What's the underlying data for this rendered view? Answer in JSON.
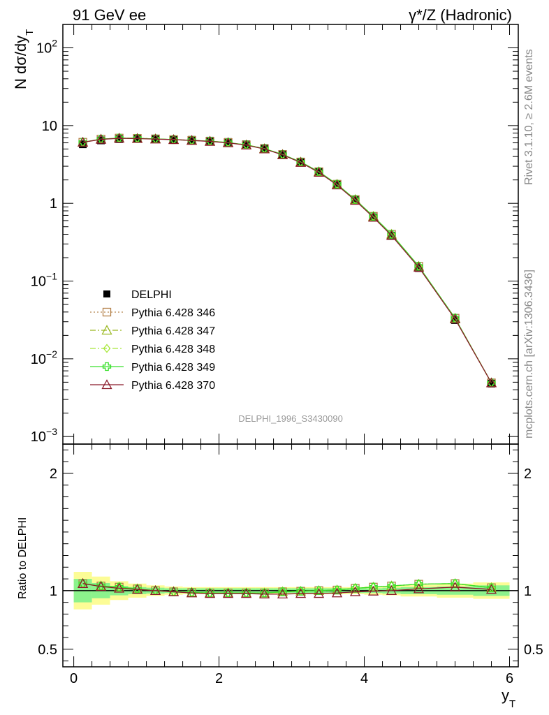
{
  "header": {
    "left": "91 GeV ee",
    "right": "γ*/Z (Hadronic)"
  },
  "side_labels": {
    "rivet": "Rivet 3.1.10, ≥ 2.6M events",
    "site": "mcplots.cern.ch [arXiv:1306.3436]"
  },
  "watermark": "DELPHI_1996_S3430090",
  "chart_data": [
    {
      "type": "line",
      "ylabel": "N dσ/dy_T",
      "yscale": "log",
      "ylim": [
        0.0008,
        200
      ],
      "xlim": [
        -0.15,
        6.12
      ],
      "ytick_labels": [
        "10^{-3}",
        "10^{-2}",
        "10^{-1}",
        "1",
        "10",
        "10^{2}"
      ],
      "x": [
        0.125,
        0.375,
        0.625,
        0.875,
        1.125,
        1.375,
        1.625,
        1.875,
        2.125,
        2.375,
        2.625,
        2.875,
        3.125,
        3.375,
        3.625,
        3.875,
        4.125,
        4.375,
        4.75,
        5.25,
        5.75
      ],
      "series": [
        {
          "name": "DELPHI",
          "color": "#000000",
          "marker": "square",
          "values": [
            5.75,
            6.45,
            6.7,
            6.75,
            6.75,
            6.65,
            6.55,
            6.4,
            6.15,
            5.75,
            5.15,
            4.3,
            3.4,
            2.55,
            1.75,
            1.1,
            0.66,
            0.385,
            0.147,
            0.0315,
            0.0048
          ]
        },
        {
          "name": "Pythia 6.428 346",
          "color": "#b5824a",
          "marker": "open-square",
          "dash": "2,3",
          "values": [
            6.1,
            6.7,
            6.9,
            6.85,
            6.75,
            6.6,
            6.45,
            6.3,
            6.05,
            5.65,
            5.05,
            4.25,
            3.4,
            2.55,
            1.76,
            1.12,
            0.68,
            0.4,
            0.155,
            0.0333,
            0.0049
          ]
        },
        {
          "name": "Pythia 6.428 347",
          "color": "#9ab822",
          "marker": "open-triangle",
          "dash": "8,3,2,3",
          "values": [
            6.1,
            6.7,
            6.9,
            6.85,
            6.75,
            6.6,
            6.45,
            6.3,
            6.05,
            5.65,
            5.05,
            4.25,
            3.4,
            2.55,
            1.76,
            1.12,
            0.68,
            0.4,
            0.155,
            0.0333,
            0.0049
          ]
        },
        {
          "name": "Pythia 6.428 348",
          "color": "#a8e83a",
          "marker": "open-diamond",
          "dash": "8,3,2,3",
          "values": [
            6.1,
            6.7,
            6.9,
            6.85,
            6.75,
            6.6,
            6.45,
            6.3,
            6.05,
            5.65,
            5.05,
            4.25,
            3.4,
            2.55,
            1.76,
            1.12,
            0.68,
            0.4,
            0.155,
            0.0333,
            0.0049
          ]
        },
        {
          "name": "Pythia 6.428 349",
          "color": "#39e02c",
          "marker": "open-cross",
          "dash": "",
          "values": [
            6.1,
            6.7,
            6.9,
            6.85,
            6.75,
            6.6,
            6.45,
            6.3,
            6.05,
            5.65,
            5.05,
            4.25,
            3.4,
            2.55,
            1.76,
            1.12,
            0.68,
            0.4,
            0.155,
            0.0333,
            0.0049
          ]
        },
        {
          "name": "Pythia 6.428 370",
          "color": "#8b1a2a",
          "marker": "open-triangle",
          "dash": "",
          "values": [
            6.1,
            6.65,
            6.85,
            6.8,
            6.7,
            6.6,
            6.45,
            6.25,
            6.0,
            5.6,
            5.0,
            4.2,
            3.35,
            2.5,
            1.72,
            1.09,
            0.66,
            0.385,
            0.15,
            0.0325,
            0.0049
          ]
        }
      ]
    },
    {
      "type": "line",
      "ylabel": "Ratio to DELPHI",
      "xlabel": "y_T",
      "ylim": [
        0.35,
        2.25
      ],
      "xlim": [
        -0.15,
        6.12
      ],
      "yticks": [
        0.5,
        1,
        2
      ],
      "ytick_labels": [
        "0.5",
        "1",
        "2"
      ],
      "xticks": [
        0,
        2,
        4,
        6
      ],
      "xtick_labels": [
        "0",
        "2",
        "4",
        "6"
      ],
      "bands": {
        "edges": [
          0.0,
          0.25,
          0.5,
          0.75,
          1.0,
          1.25,
          1.5,
          1.75,
          2.0,
          2.25,
          2.5,
          2.75,
          3.0,
          3.25,
          3.5,
          3.75,
          4.0,
          4.25,
          4.5,
          5.0,
          5.5,
          6.0
        ],
        "inner": [
          0.1,
          0.065,
          0.04,
          0.03,
          0.025,
          0.02,
          0.02,
          0.02,
          0.02,
          0.02,
          0.02,
          0.02,
          0.02,
          0.02,
          0.02,
          0.02,
          0.02,
          0.025,
          0.03,
          0.035,
          0.045
        ],
        "outer": [
          0.16,
          0.12,
          0.08,
          0.06,
          0.045,
          0.035,
          0.03,
          0.03,
          0.03,
          0.03,
          0.03,
          0.03,
          0.03,
          0.03,
          0.03,
          0.03,
          0.035,
          0.04,
          0.05,
          0.06,
          0.07
        ],
        "inner_color": "#8cf28c",
        "outer_color": "#fcfc96"
      },
      "series": [
        {
          "name": "Pythia 6.428 346",
          "color": "#b5824a",
          "values": [
            1.06,
            1.04,
            1.03,
            1.015,
            1.0,
            0.99,
            0.985,
            0.98,
            0.98,
            0.98,
            0.98,
            0.99,
            0.995,
            1.0,
            1.005,
            1.02,
            1.03,
            1.04,
            1.055,
            1.06,
            1.025
          ]
        },
        {
          "name": "Pythia 6.428 347",
          "color": "#9ab822",
          "values": [
            1.06,
            1.04,
            1.03,
            1.015,
            1.0,
            0.99,
            0.985,
            0.98,
            0.98,
            0.98,
            0.98,
            0.99,
            0.995,
            1.0,
            1.005,
            1.02,
            1.03,
            1.04,
            1.055,
            1.06,
            1.025
          ]
        },
        {
          "name": "Pythia 6.428 348",
          "color": "#a8e83a",
          "values": [
            1.06,
            1.04,
            1.03,
            1.015,
            1.0,
            0.99,
            0.985,
            0.98,
            0.98,
            0.98,
            0.98,
            0.99,
            0.995,
            1.0,
            1.005,
            1.02,
            1.03,
            1.04,
            1.055,
            1.06,
            1.025
          ]
        },
        {
          "name": "Pythia 6.428 349",
          "color": "#39e02c",
          "values": [
            1.06,
            1.04,
            1.03,
            1.015,
            1.0,
            0.99,
            0.985,
            0.98,
            0.98,
            0.98,
            0.98,
            0.99,
            0.995,
            1.0,
            1.005,
            1.02,
            1.03,
            1.04,
            1.055,
            1.06,
            1.025
          ]
        },
        {
          "name": "Pythia 6.428 370",
          "color": "#8b1a2a",
          "values": [
            1.06,
            1.035,
            1.02,
            1.01,
            1.0,
            0.99,
            0.98,
            0.975,
            0.975,
            0.975,
            0.97,
            0.97,
            0.975,
            0.975,
            0.98,
            0.99,
            0.995,
            1.0,
            1.015,
            1.03,
            1.01
          ]
        }
      ]
    }
  ]
}
